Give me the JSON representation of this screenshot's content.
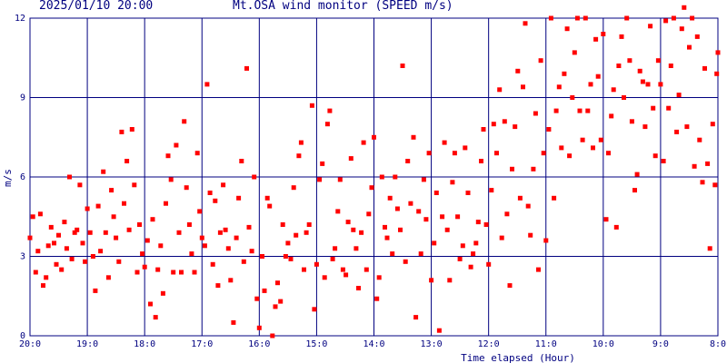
{
  "header": {
    "datetime": "2025/01/10 20:00",
    "title": "Mt.OSA wind monitor (SPEED m/s)"
  },
  "colors": {
    "grid": "#000080",
    "points": "#ff0000",
    "text": "#000080",
    "background": "#ffffff"
  },
  "chart_data": {
    "type": "scatter",
    "ylabel": "m/s",
    "xlabel": "Time elapsed (Hour)",
    "ylim": [
      0,
      12
    ],
    "yticks": [
      0,
      3,
      6,
      9,
      12
    ],
    "xlim": [
      20,
      8
    ],
    "x_tick_labels": [
      "20:0",
      "19:0",
      "18:0",
      "17:0",
      "16:0",
      "15:0",
      "14:0",
      "13:0",
      "12:0",
      "11:0",
      "10:0",
      "9:0",
      "8:0"
    ],
    "grid": "on",
    "series": [
      {
        "values": [
          [
            20.0,
            3.7
          ],
          [
            19.95,
            4.5
          ],
          [
            19.9,
            2.4
          ],
          [
            19.86,
            3.2
          ],
          [
            19.82,
            4.6
          ],
          [
            19.77,
            1.9
          ],
          [
            19.72,
            2.2
          ],
          [
            19.68,
            3.4
          ],
          [
            19.63,
            4.1
          ],
          [
            19.58,
            3.5
          ],
          [
            19.54,
            2.7
          ],
          [
            19.5,
            3.8
          ],
          [
            19.45,
            2.5
          ],
          [
            19.4,
            4.3
          ],
          [
            19.36,
            3.3
          ],
          [
            19.31,
            6.0
          ],
          [
            19.27,
            2.9
          ],
          [
            19.22,
            3.9
          ],
          [
            19.18,
            4.0
          ],
          [
            19.13,
            5.7
          ],
          [
            19.08,
            3.5
          ],
          [
            19.04,
            2.8
          ],
          [
            19.0,
            4.8
          ],
          [
            18.95,
            3.9
          ],
          [
            18.9,
            3.0
          ],
          [
            18.86,
            1.7
          ],
          [
            18.81,
            4.9
          ],
          [
            18.77,
            3.2
          ],
          [
            18.72,
            6.2
          ],
          [
            18.68,
            3.9
          ],
          [
            18.63,
            2.2
          ],
          [
            18.58,
            5.5
          ],
          [
            18.54,
            4.5
          ],
          [
            18.5,
            3.7
          ],
          [
            18.45,
            2.8
          ],
          [
            18.4,
            7.7
          ],
          [
            18.36,
            5.0
          ],
          [
            18.31,
            6.6
          ],
          [
            18.27,
            4.0
          ],
          [
            18.22,
            7.8
          ],
          [
            18.18,
            5.7
          ],
          [
            18.13,
            2.4
          ],
          [
            18.09,
            4.2
          ],
          [
            18.04,
            3.1
          ],
          [
            18.0,
            2.6
          ],
          [
            17.95,
            3.6
          ],
          [
            17.9,
            1.2
          ],
          [
            17.86,
            4.4
          ],
          [
            17.81,
            0.7
          ],
          [
            17.77,
            2.5
          ],
          [
            17.72,
            3.4
          ],
          [
            17.68,
            1.6
          ],
          [
            17.63,
            5.0
          ],
          [
            17.59,
            6.8
          ],
          [
            17.54,
            5.9
          ],
          [
            17.5,
            2.4
          ],
          [
            17.45,
            7.2
          ],
          [
            17.4,
            3.9
          ],
          [
            17.36,
            2.4
          ],
          [
            17.31,
            8.1
          ],
          [
            17.27,
            5.6
          ],
          [
            17.22,
            4.2
          ],
          [
            17.18,
            3.1
          ],
          [
            17.13,
            2.4
          ],
          [
            17.08,
            6.9
          ],
          [
            17.04,
            4.7
          ],
          [
            17.0,
            3.7
          ],
          [
            16.95,
            3.4
          ],
          [
            16.91,
            9.5
          ],
          [
            16.86,
            5.4
          ],
          [
            16.81,
            2.7
          ],
          [
            16.77,
            5.1
          ],
          [
            16.72,
            1.9
          ],
          [
            16.68,
            3.9
          ],
          [
            16.63,
            5.7
          ],
          [
            16.59,
            4.0
          ],
          [
            16.54,
            3.3
          ],
          [
            16.5,
            2.1
          ],
          [
            16.45,
            0.5
          ],
          [
            16.4,
            3.7
          ],
          [
            16.36,
            5.2
          ],
          [
            16.31,
            6.6
          ],
          [
            16.27,
            2.8
          ],
          [
            16.22,
            10.1
          ],
          [
            16.18,
            4.1
          ],
          [
            16.13,
            3.2
          ],
          [
            16.09,
            6.0
          ],
          [
            16.04,
            1.4
          ],
          [
            16.0,
            0.3
          ],
          [
            15.95,
            3.0
          ],
          [
            15.91,
            1.7
          ],
          [
            15.86,
            5.2
          ],
          [
            15.82,
            4.9
          ],
          [
            15.77,
            0.0
          ],
          [
            15.72,
            1.1
          ],
          [
            15.68,
            2.0
          ],
          [
            15.63,
            1.3
          ],
          [
            15.59,
            4.2
          ],
          [
            15.54,
            3.0
          ],
          [
            15.5,
            3.5
          ],
          [
            15.45,
            2.9
          ],
          [
            15.4,
            5.6
          ],
          [
            15.36,
            3.8
          ],
          [
            15.31,
            6.8
          ],
          [
            15.27,
            7.3
          ],
          [
            15.22,
            2.5
          ],
          [
            15.18,
            3.9
          ],
          [
            15.13,
            4.2
          ],
          [
            15.08,
            8.7
          ],
          [
            15.04,
            1.0
          ],
          [
            15.0,
            2.7
          ],
          [
            14.95,
            5.9
          ],
          [
            14.9,
            6.5
          ],
          [
            14.86,
            2.2
          ],
          [
            14.81,
            8.0
          ],
          [
            14.77,
            8.5
          ],
          [
            14.72,
            2.9
          ],
          [
            14.68,
            3.3
          ],
          [
            14.63,
            4.7
          ],
          [
            14.59,
            5.9
          ],
          [
            14.54,
            2.5
          ],
          [
            14.49,
            2.3
          ],
          [
            14.45,
            4.3
          ],
          [
            14.4,
            6.7
          ],
          [
            14.36,
            4.0
          ],
          [
            14.31,
            3.3
          ],
          [
            14.27,
            1.8
          ],
          [
            14.22,
            3.9
          ],
          [
            14.18,
            7.3
          ],
          [
            14.13,
            2.5
          ],
          [
            14.09,
            4.6
          ],
          [
            14.04,
            5.6
          ],
          [
            14.0,
            7.5
          ],
          [
            13.95,
            1.4
          ],
          [
            13.91,
            2.2
          ],
          [
            13.86,
            6.0
          ],
          [
            13.81,
            4.1
          ],
          [
            13.77,
            3.7
          ],
          [
            13.72,
            5.2
          ],
          [
            13.68,
            3.1
          ],
          [
            13.63,
            6.0
          ],
          [
            13.59,
            4.8
          ],
          [
            13.54,
            4.0
          ],
          [
            13.5,
            10.2
          ],
          [
            13.45,
            2.8
          ],
          [
            13.41,
            6.6
          ],
          [
            13.36,
            5.0
          ],
          [
            13.31,
            7.5
          ],
          [
            13.27,
            0.7
          ],
          [
            13.22,
            4.7
          ],
          [
            13.18,
            3.1
          ],
          [
            13.13,
            5.9
          ],
          [
            13.09,
            4.4
          ],
          [
            13.04,
            6.9
          ],
          [
            13.0,
            2.1
          ],
          [
            12.95,
            3.5
          ],
          [
            12.91,
            5.4
          ],
          [
            12.86,
            0.2
          ],
          [
            12.81,
            4.5
          ],
          [
            12.77,
            7.3
          ],
          [
            12.72,
            4.0
          ],
          [
            12.68,
            2.1
          ],
          [
            12.63,
            5.8
          ],
          [
            12.59,
            6.9
          ],
          [
            12.54,
            4.5
          ],
          [
            12.5,
            2.9
          ],
          [
            12.45,
            3.4
          ],
          [
            12.41,
            7.1
          ],
          [
            12.36,
            5.4
          ],
          [
            12.31,
            2.6
          ],
          [
            12.27,
            3.1
          ],
          [
            12.22,
            3.5
          ],
          [
            12.18,
            4.3
          ],
          [
            12.13,
            6.6
          ],
          [
            12.09,
            7.8
          ],
          [
            12.04,
            4.2
          ],
          [
            12.0,
            2.7
          ],
          [
            11.95,
            5.5
          ],
          [
            11.91,
            8.0
          ],
          [
            11.86,
            6.9
          ],
          [
            11.81,
            9.3
          ],
          [
            11.77,
            3.7
          ],
          [
            11.72,
            8.1
          ],
          [
            11.68,
            4.6
          ],
          [
            11.63,
            1.9
          ],
          [
            11.59,
            6.3
          ],
          [
            11.54,
            7.9
          ],
          [
            11.49,
            10.0
          ],
          [
            11.45,
            5.2
          ],
          [
            11.4,
            9.4
          ],
          [
            11.36,
            11.8
          ],
          [
            11.31,
            4.9
          ],
          [
            11.27,
            3.8
          ],
          [
            11.22,
            6.3
          ],
          [
            11.18,
            8.4
          ],
          [
            11.13,
            2.5
          ],
          [
            11.09,
            10.4
          ],
          [
            11.04,
            6.9
          ],
          [
            11.0,
            3.6
          ],
          [
            10.95,
            7.8
          ],
          [
            10.91,
            12.0
          ],
          [
            10.86,
            5.2
          ],
          [
            10.82,
            8.5
          ],
          [
            10.77,
            9.4
          ],
          [
            10.73,
            7.1
          ],
          [
            10.68,
            9.9
          ],
          [
            10.63,
            11.6
          ],
          [
            10.59,
            6.8
          ],
          [
            10.54,
            9.0
          ],
          [
            10.5,
            10.7
          ],
          [
            10.45,
            12.0
          ],
          [
            10.41,
            8.5
          ],
          [
            10.36,
            7.4
          ],
          [
            10.31,
            12.0
          ],
          [
            10.27,
            8.5
          ],
          [
            10.22,
            9.5
          ],
          [
            10.18,
            7.1
          ],
          [
            10.13,
            11.2
          ],
          [
            10.09,
            9.8
          ],
          [
            10.04,
            7.4
          ],
          [
            10.0,
            11.4
          ],
          [
            9.95,
            4.4
          ],
          [
            9.91,
            6.9
          ],
          [
            9.86,
            8.3
          ],
          [
            9.82,
            9.3
          ],
          [
            9.77,
            4.1
          ],
          [
            9.73,
            10.2
          ],
          [
            9.68,
            11.3
          ],
          [
            9.64,
            9.0
          ],
          [
            9.59,
            12.0
          ],
          [
            9.54,
            10.4
          ],
          [
            9.5,
            8.1
          ],
          [
            9.45,
            5.5
          ],
          [
            9.41,
            6.1
          ],
          [
            9.36,
            10.0
          ],
          [
            9.31,
            9.6
          ],
          [
            9.27,
            7.9
          ],
          [
            9.22,
            9.5
          ],
          [
            9.18,
            11.7
          ],
          [
            9.13,
            8.6
          ],
          [
            9.09,
            6.8
          ],
          [
            9.04,
            10.4
          ],
          [
            9.0,
            9.5
          ],
          [
            8.95,
            6.6
          ],
          [
            8.91,
            11.9
          ],
          [
            8.86,
            8.6
          ],
          [
            8.82,
            10.2
          ],
          [
            8.77,
            12.0
          ],
          [
            8.72,
            7.7
          ],
          [
            8.68,
            9.1
          ],
          [
            8.63,
            11.6
          ],
          [
            8.59,
            12.4
          ],
          [
            8.54,
            7.9
          ],
          [
            8.5,
            10.9
          ],
          [
            8.45,
            12.0
          ],
          [
            8.41,
            6.4
          ],
          [
            8.36,
            11.3
          ],
          [
            8.32,
            7.4
          ],
          [
            8.27,
            5.8
          ],
          [
            8.23,
            10.1
          ],
          [
            8.18,
            6.5
          ],
          [
            8.14,
            3.3
          ],
          [
            8.09,
            8.0
          ],
          [
            8.05,
            5.7
          ],
          [
            8.02,
            9.9
          ],
          [
            8.0,
            10.7
          ]
        ]
      }
    ]
  }
}
